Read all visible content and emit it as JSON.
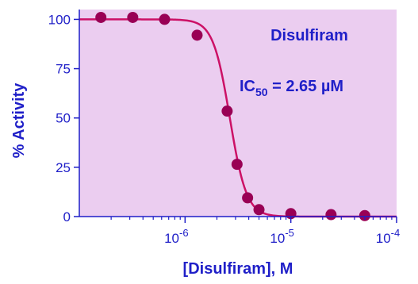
{
  "chart_data": {
    "type": "scatter",
    "xlabel": "[Disulfiram], M",
    "ylabel": "% Activity",
    "x_scale": "log",
    "xlim": [
      1e-07,
      0.0001
    ],
    "ylim": [
      0,
      105
    ],
    "y_ticks": [
      0,
      25,
      50,
      75,
      100
    ],
    "x_ticks": [
      {
        "value": 1e-06,
        "base": "10",
        "exp": "-6"
      },
      {
        "value": 1e-05,
        "base": "10",
        "exp": "-5"
      },
      {
        "value": 0.0001,
        "base": "10",
        "exp": "-4"
      }
    ],
    "annotations": {
      "compound": "Disulfiram",
      "ic50_prefix": "IC",
      "ic50_subscript": "50",
      "ic50_value": " = 2.65 µM"
    },
    "series": [
      {
        "points": [
          {
            "x": 1.6e-07,
            "y": 101
          },
          {
            "x": 3.2e-07,
            "y": 101
          },
          {
            "x": 6.4e-07,
            "y": 100
          },
          {
            "x": 1.3e-06,
            "y": 92
          },
          {
            "x": 2.5e-06,
            "y": 53.5
          },
          {
            "x": 3.1e-06,
            "y": 26.5
          },
          {
            "x": 3.9e-06,
            "y": 9.5
          },
          {
            "x": 5e-06,
            "y": 3.5
          },
          {
            "x": 1e-05,
            "y": 1.5
          },
          {
            "x": 2.4e-05,
            "y": 1
          },
          {
            "x": 5e-05,
            "y": 0.5
          }
        ],
        "fit": {
          "top": 100,
          "bottom": 0,
          "ic50": 2.65e-06,
          "hill": 5.5
        }
      }
    ],
    "colors": {
      "plot_background": "#ebcdf0",
      "axis": "#1f1fc8",
      "marker": "#990055",
      "fit_line": "#cc1166",
      "text": "#1f1fc8"
    }
  }
}
